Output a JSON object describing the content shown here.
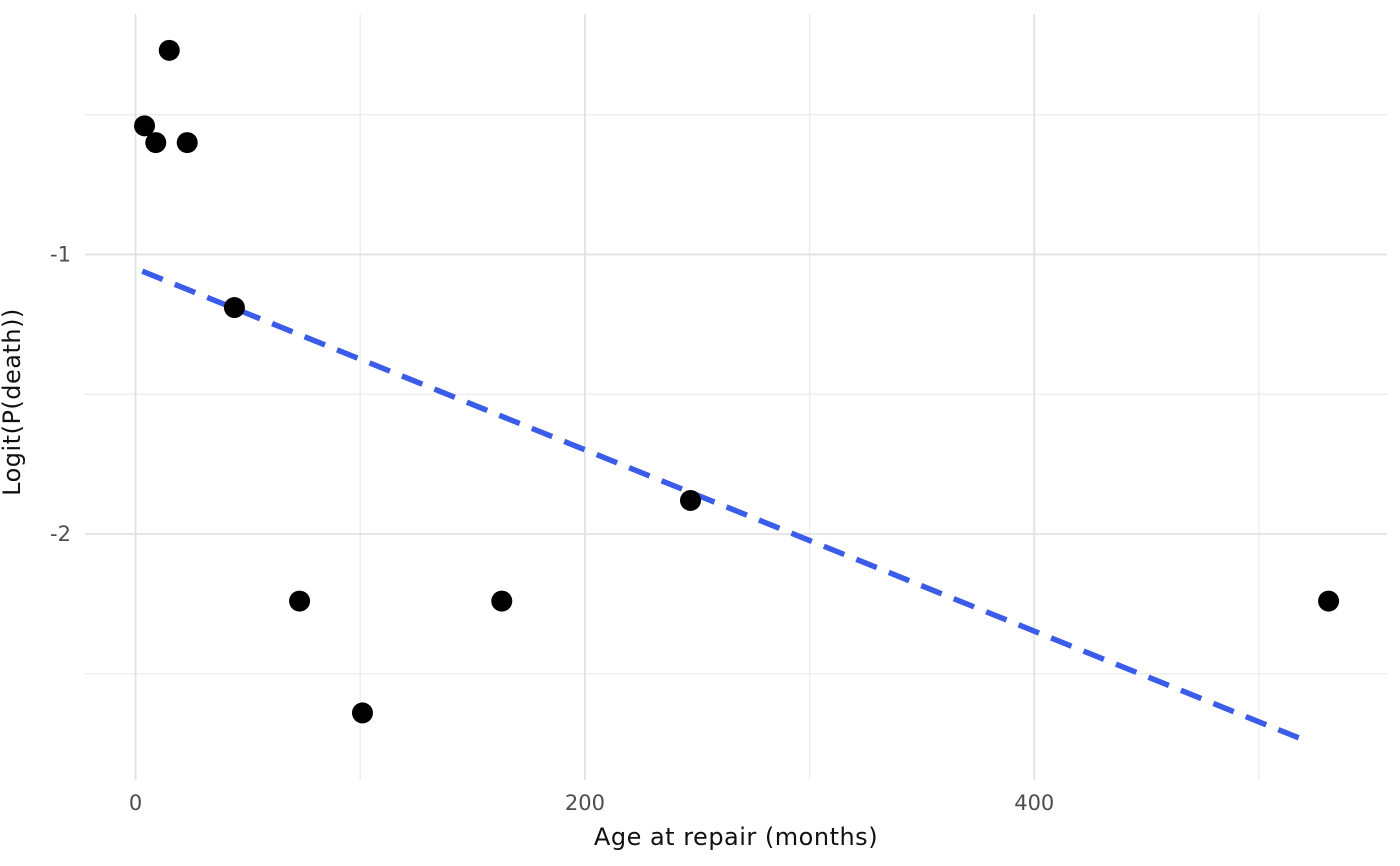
{
  "chart_data": {
    "type": "scatter",
    "title": "",
    "xlabel": "Age at repair (months)",
    "ylabel": "Logit(P(death))",
    "xlim": [
      -22.5,
      557
    ],
    "ylim": [
      -2.88,
      -0.14
    ],
    "x_major_ticks": [
      0,
      200,
      400
    ],
    "x_tick_labels": [
      "0",
      "200",
      "400"
    ],
    "x_minor_gridlines": [
      100,
      300,
      500
    ],
    "y_major_ticks": [
      -1,
      -2
    ],
    "y_tick_labels": [
      "-1",
      "-2"
    ],
    "y_minor_gridlines": [
      -0.5,
      -1.5,
      -2.5
    ],
    "grid": "on",
    "legend": "none",
    "points": [
      {
        "x": 4,
        "y": -0.54
      },
      {
        "x": 9,
        "y": -0.6
      },
      {
        "x": 15,
        "y": -0.27
      },
      {
        "x": 23,
        "y": -0.6
      },
      {
        "x": 44,
        "y": -1.19
      },
      {
        "x": 73,
        "y": -2.24
      },
      {
        "x": 101,
        "y": -2.64
      },
      {
        "x": 163,
        "y": -2.24
      },
      {
        "x": 247,
        "y": -1.88
      },
      {
        "x": 531,
        "y": -2.24
      }
    ],
    "trend_line": {
      "style": "dashed",
      "x_start": 3,
      "y_start": -1.06,
      "x_end": 521,
      "y_end": -2.74
    },
    "colors": {
      "point": "#000000",
      "trend_line": "#3A5CE8",
      "grid_major": "#E2E2E2",
      "grid_minor": "#EDEDED",
      "tick_label": "#4D4D4D",
      "axis_title": "#111111",
      "background": "#FFFFFF"
    }
  }
}
